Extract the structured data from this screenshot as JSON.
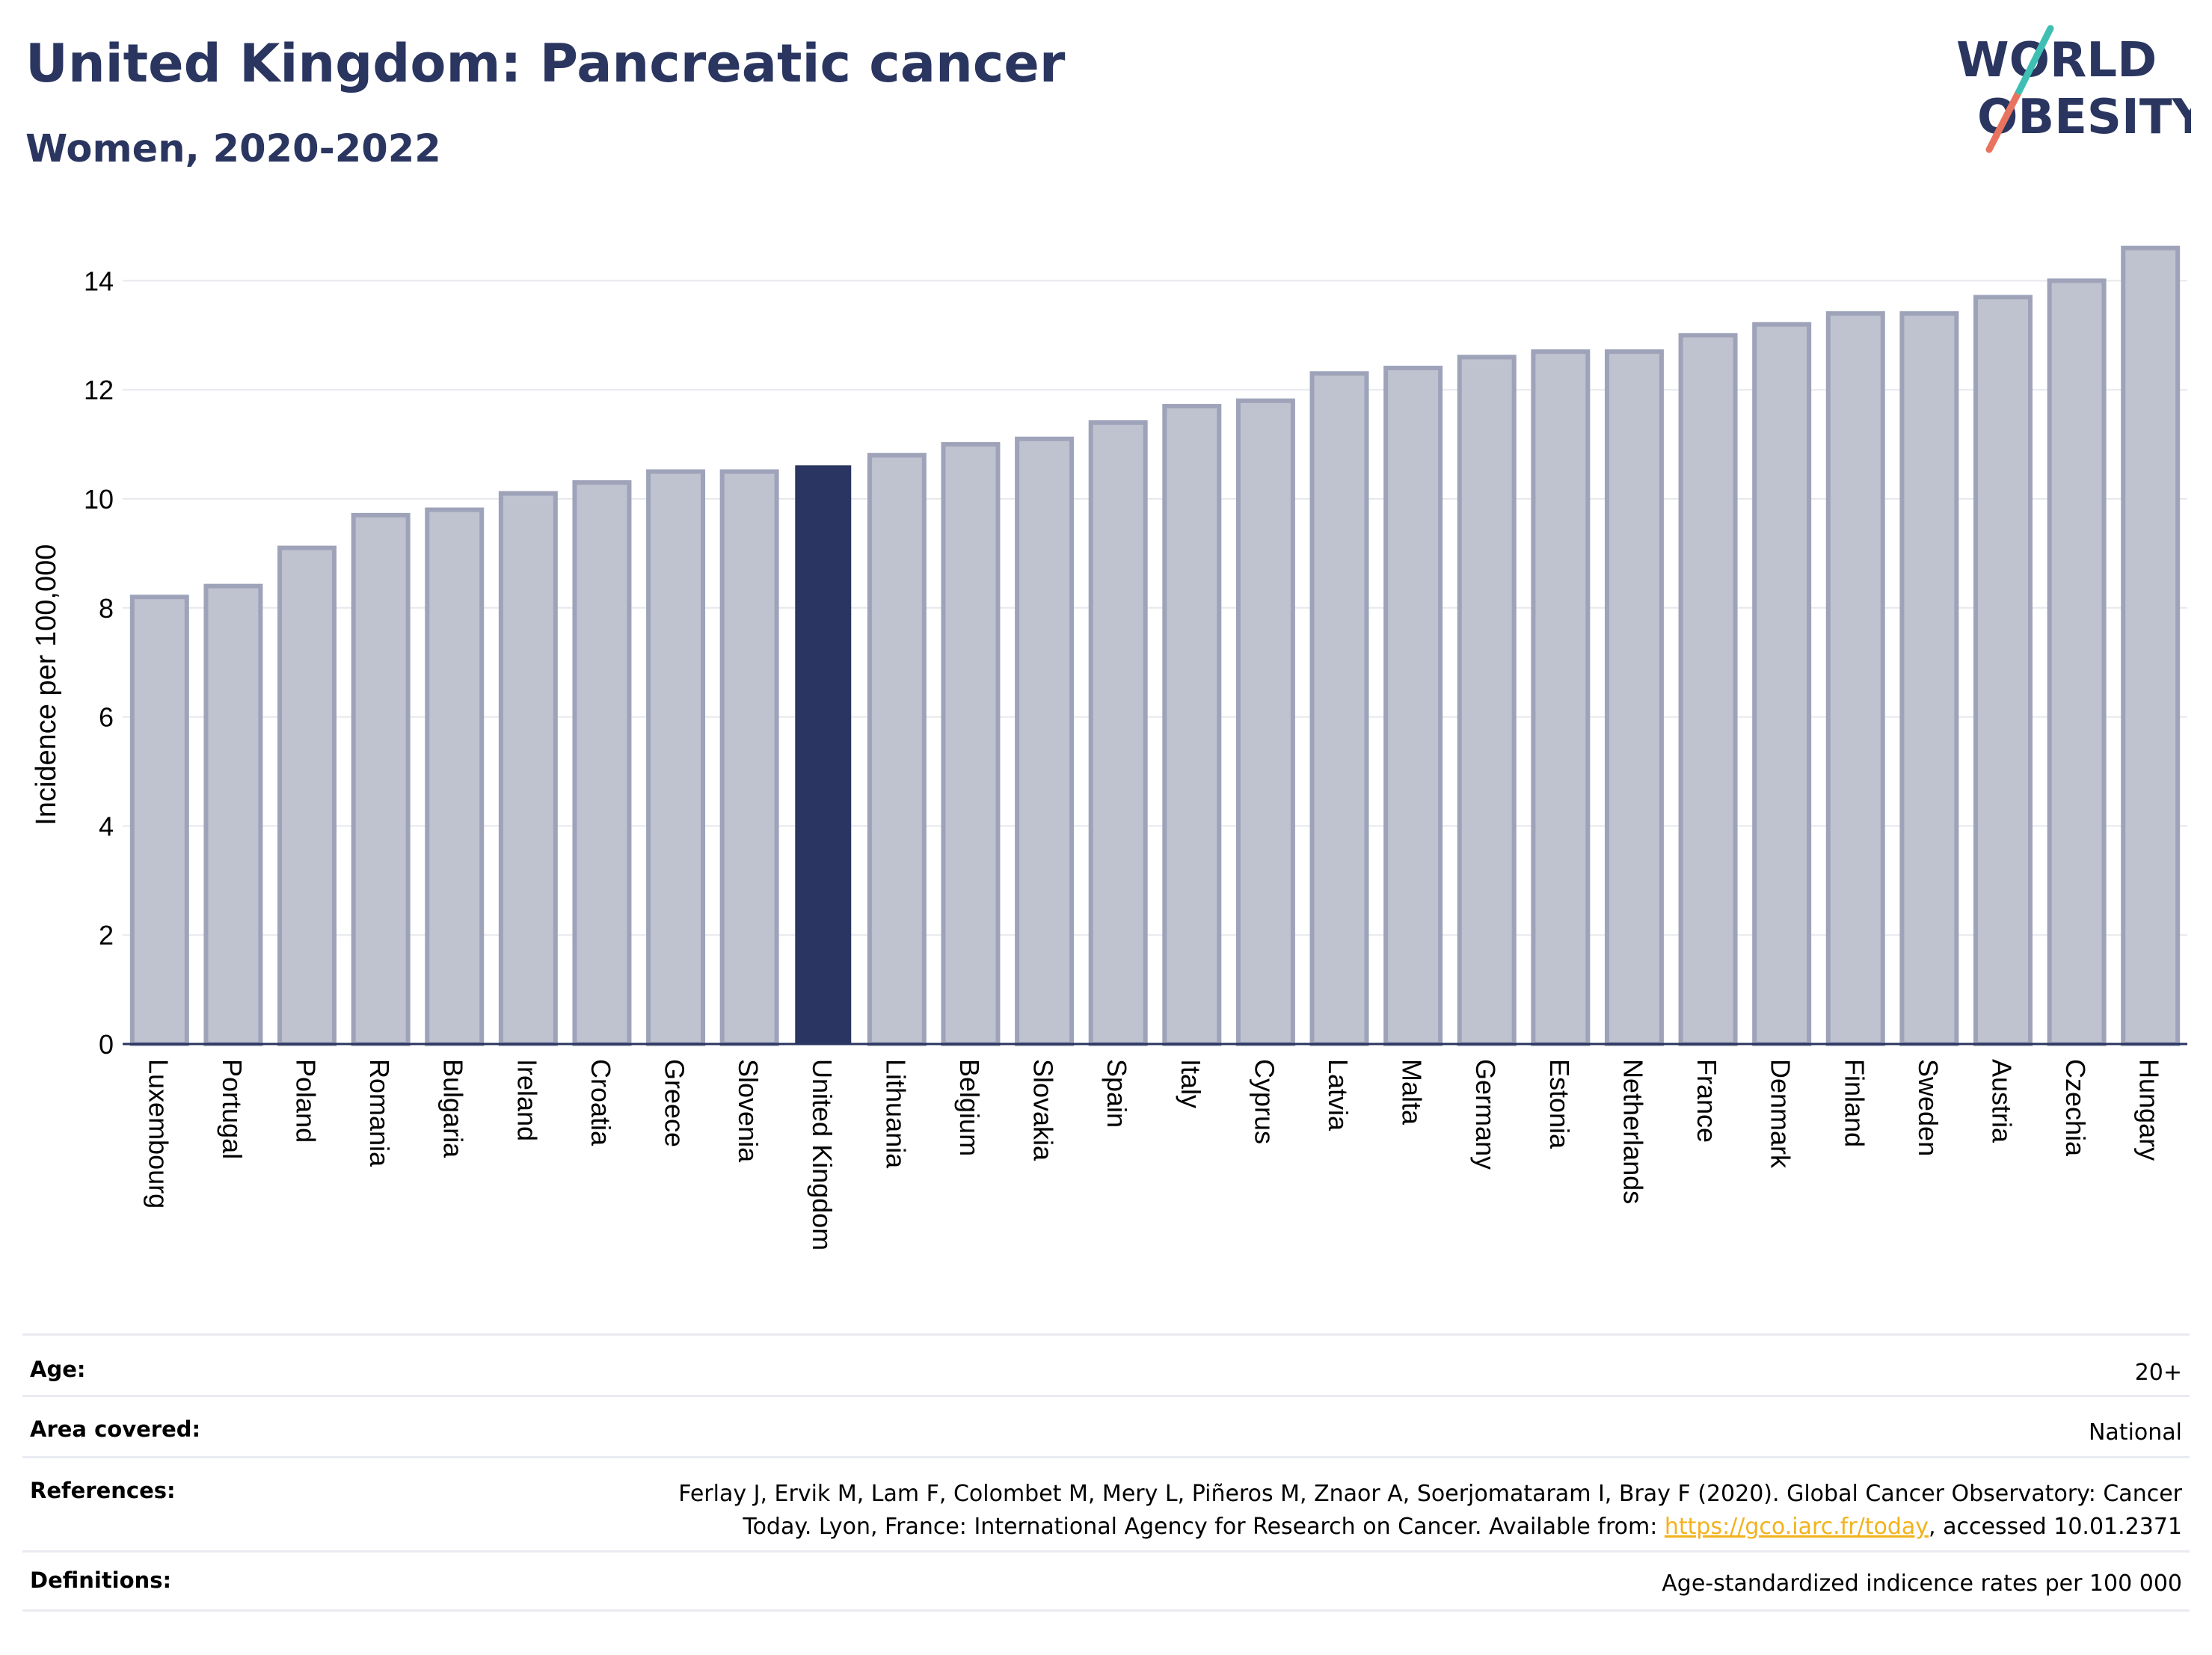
{
  "header": {
    "title": "United Kingdom: Pancreatic cancer",
    "subtitle": "Women, 2020-2022",
    "logo_line1": "WORLD",
    "logo_line2": "OBESITY"
  },
  "colors": {
    "highlight_bar": "#2b3561",
    "default_bar_fill": "#bfc2cf",
    "default_bar_stroke": "#9ea3b9",
    "text": "#2a3560",
    "logo_teal": "#3fbfb3",
    "logo_coral": "#e8735f"
  },
  "chart_data": {
    "type": "bar",
    "title": "United Kingdom: Pancreatic cancer",
    "subtitle": "Women, 2020-2022",
    "ylabel": "Incidence per 100,000",
    "xlabel": "",
    "ylim": [
      0,
      15
    ],
    "yticks": [
      0,
      2,
      4,
      6,
      8,
      10,
      12,
      14
    ],
    "grid": true,
    "highlight": "United Kingdom",
    "categories": [
      "Luxembourg",
      "Portugal",
      "Poland",
      "Romania",
      "Bulgaria",
      "Ireland",
      "Croatia",
      "Greece",
      "Slovenia",
      "United Kingdom",
      "Lithuania",
      "Belgium",
      "Slovakia",
      "Spain",
      "Italy",
      "Cyprus",
      "Latvia",
      "Malta",
      "Germany",
      "Estonia",
      "Netherlands",
      "France",
      "Denmark",
      "Finland",
      "Sweden",
      "Austria",
      "Czechia",
      "Hungary"
    ],
    "values": [
      8.2,
      8.4,
      9.1,
      9.7,
      9.8,
      10.1,
      10.3,
      10.5,
      10.5,
      10.6,
      10.8,
      11.0,
      11.1,
      11.4,
      11.7,
      11.8,
      12.3,
      12.4,
      12.6,
      12.7,
      12.7,
      13.0,
      13.2,
      13.4,
      13.4,
      13.7,
      14.0,
      14.6
    ]
  },
  "info": {
    "age_label": "Age:",
    "age_value": "20+",
    "area_label": "Area covered:",
    "area_value": "National",
    "references_label": "References:",
    "references_line1": "Ferlay J, Ervik M, Lam F, Colombet M, Mery L, Piñeros M, Znaor A, Soerjomataram I, Bray F (2020). Global Cancer Observatory: Cancer",
    "references_line2_pre": "Today. Lyon, France: International Agency for Research on Cancer. Available from: ",
    "references_link": "https://gco.iarc.fr/today",
    "references_line2_post": ", accessed 10.01.2371",
    "definitions_label": "Definitions:",
    "definitions_value": "Age-standardized indicence rates per 100 000"
  }
}
